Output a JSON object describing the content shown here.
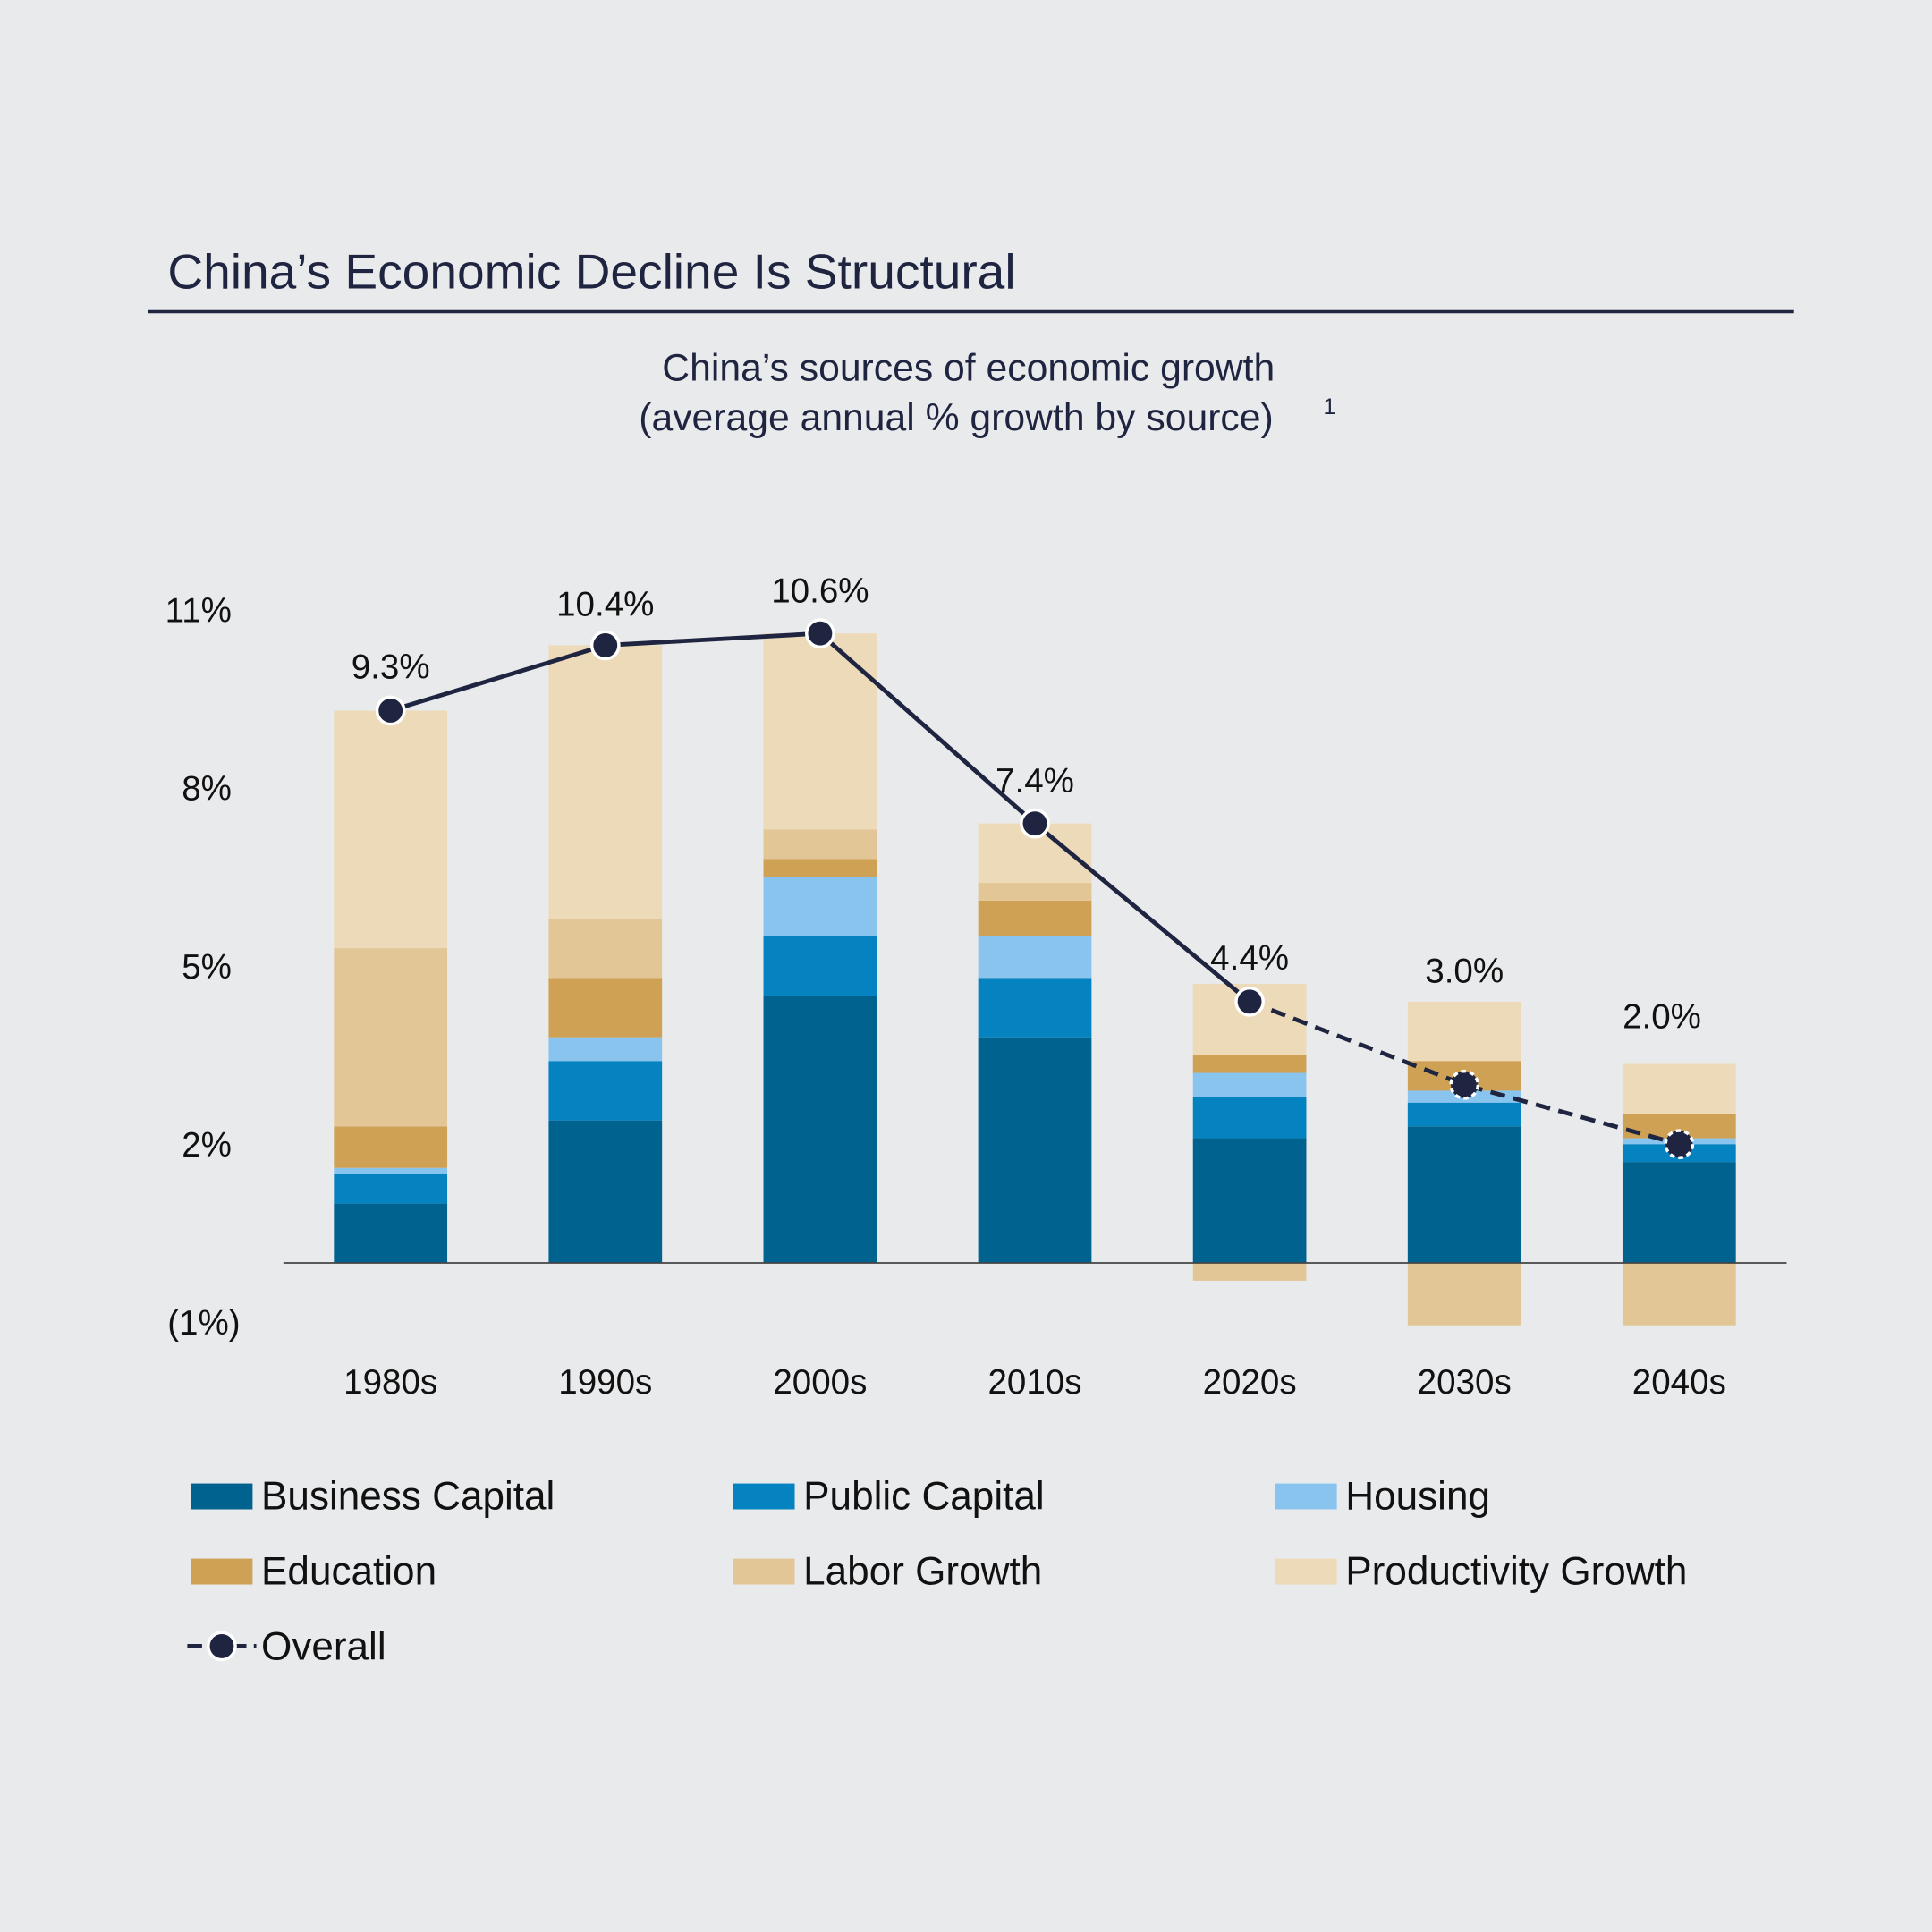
{
  "header": {
    "title": "China’s Economic Decline Is Structural",
    "subtitle_line1": "China’s sources of economic growth",
    "subtitle_line2": "(average annual % growth by source)",
    "footnote_marker": "1"
  },
  "chart_data": {
    "type": "bar",
    "stacked": true,
    "categories": [
      "1980s",
      "1990s",
      "2000s",
      "2010s",
      "2020s",
      "2030s",
      "2040s"
    ],
    "y_ticks": [
      {
        "value": 11,
        "label": "11%"
      },
      {
        "value": 8,
        "label": "8%"
      },
      {
        "value": 5,
        "label": "5%"
      },
      {
        "value": 2,
        "label": "2%"
      },
      {
        "value": -1,
        "label": "(1%)"
      }
    ],
    "ylim": [
      -1,
      11
    ],
    "grid": false,
    "legend_position": "bottom",
    "series": [
      {
        "name": "Business Capital",
        "color": "#00628f",
        "values": [
          1.0,
          2.4,
          4.5,
          3.8,
          2.1,
          2.3,
          1.7
        ]
      },
      {
        "name": "Public Capital",
        "color": "#0582c0",
        "values": [
          0.5,
          1.0,
          1.0,
          1.0,
          0.7,
          0.4,
          0.3
        ]
      },
      {
        "name": "Housing",
        "color": "#89c4ef",
        "values": [
          0.1,
          0.4,
          1.0,
          0.7,
          0.4,
          0.2,
          0.1
        ]
      },
      {
        "name": "Education",
        "color": "#cfa155",
        "values": [
          0.7,
          1.0,
          0.3,
          0.6,
          0.3,
          0.5,
          0.4
        ]
      },
      {
        "name": "Labor Growth",
        "color": "#e2c696",
        "values": [
          3.0,
          1.0,
          0.5,
          0.3,
          -0.3,
          -1.05,
          -1.05
        ]
      },
      {
        "name": "Productivity Growth",
        "color": "#ecdab8",
        "values": [
          4.0,
          4.6,
          3.3,
          1.0,
          1.2,
          1.0,
          0.85
        ]
      }
    ],
    "overall": {
      "name": "Overall",
      "color": "#1f2540",
      "values": [
        9.3,
        10.4,
        10.6,
        7.4,
        4.4,
        3.0,
        2.0
      ],
      "labels": [
        "9.3%",
        "10.4%",
        "10.6%",
        "7.4%",
        "4.4%",
        "3.0%",
        "2.0%"
      ],
      "projected_from_index": 4
    }
  }
}
